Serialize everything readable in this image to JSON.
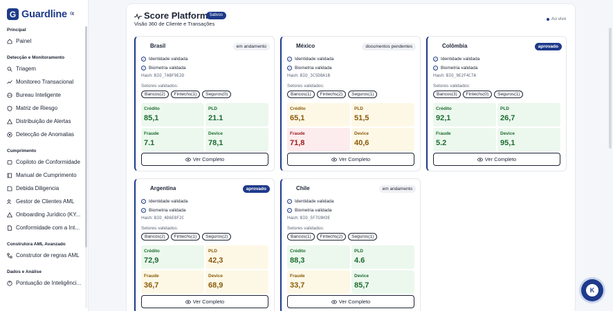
{
  "brand": {
    "name": "Guardline",
    "reg": "®",
    "logo_letter": "G",
    "color": "#1e3a8a"
  },
  "sidebar": {
    "collapse_glyph": "‹",
    "sections": [
      {
        "title": "Principal",
        "items": [
          {
            "label": "Painel",
            "icon": "home-icon"
          }
        ]
      },
      {
        "title": "Detecção e Monitoramento",
        "items": [
          {
            "label": "Triagem",
            "icon": "search-icon"
          },
          {
            "label": "Monitoreo Transacional",
            "icon": "trend-icon"
          },
          {
            "label": "Bureau Inteligente",
            "icon": "globe-icon"
          },
          {
            "label": "Matriz de Riesgo",
            "icon": "shield-icon"
          },
          {
            "label": "Distribuição de Alertas",
            "icon": "alert-icon"
          },
          {
            "label": "Detecção de Anomalias",
            "icon": "target-icon"
          }
        ]
      },
      {
        "title": "Cumprimento",
        "items": [
          {
            "label": "Copiloto de Conformidade",
            "icon": "copilot-icon"
          },
          {
            "label": "Manual de Cumprimento",
            "icon": "book-icon"
          },
          {
            "label": "Debida Diligencia",
            "icon": "diligence-icon"
          },
          {
            "label": "Gestor de Clientes AML",
            "icon": "users-icon"
          },
          {
            "label": "Onboarding Jurídico (KY...",
            "icon": "onboarding-icon"
          },
          {
            "label": "Conformidade com a Int...",
            "icon": "document-icon"
          }
        ]
      },
      {
        "title": "Construtora AML Avanzado",
        "items": [
          {
            "label": "Construtor de regras AML",
            "icon": "rules-icon"
          }
        ]
      },
      {
        "title": "Dados e Análise",
        "items": [
          {
            "label": "Pontuação de Inteligênci...",
            "icon": "score-icon"
          }
        ]
      }
    ]
  },
  "header": {
    "title": "Score Platform",
    "badge": "5ativos",
    "subtitle": "Visão 360 de Cliente e Transações",
    "live": "Ao vivo"
  },
  "labels": {
    "identity": "Identidade validada",
    "biometric": "Biometria validada",
    "hash_prefix": "Hash:",
    "sectors": "Setores validados:",
    "credit": "Crédito",
    "pld": "PLD",
    "fraud": "Fraude",
    "device": "Device",
    "view_button": "Ver Completo"
  },
  "cards": [
    {
      "country": "Brasil",
      "flag": "brazil-flag-icon",
      "status": "em andamento",
      "status_type": "default",
      "hash": "BIO_7ABF9E2D",
      "sectors": [
        "Bancos(2)",
        "Fintechs(1)",
        "Seguros(0)"
      ],
      "credit": "85,1",
      "pld": "21.1",
      "fraud": "7.1",
      "device": "78,1",
      "tones": [
        "green",
        "green",
        "green",
        "green"
      ]
    },
    {
      "country": "México",
      "flag": "mexico-flag-icon",
      "status": "documentos pendentes",
      "status_type": "default",
      "hash": "BIO_3C5D8A1B",
      "sectors": [
        "Bancos(1)",
        "Fintechs(2)",
        "Seguros(1)"
      ],
      "credit": "65,1",
      "pld": "51,5",
      "fraud": "71,8",
      "device": "40,6",
      "tones": [
        "yellow",
        "yellow",
        "red",
        "yellow"
      ]
    },
    {
      "country": "Colômbia",
      "flag": "colombia-flag-icon",
      "status": "aprovado",
      "status_type": "approved",
      "hash": "BIO_9E2F4C7A",
      "sectors": [
        "Bancos(3)",
        "Fintechs(0)",
        "Seguros(1)"
      ],
      "credit": "92,1",
      "pld": "26,7",
      "fraud": "5.2",
      "device": "95,1",
      "tones": [
        "green",
        "green",
        "green",
        "green"
      ]
    },
    {
      "country": "Argentina",
      "flag": "argentina-flag-icon",
      "status": "aprovado",
      "status_type": "approved",
      "hash": "BIO_4D6E8F2C",
      "sectors": [
        "Bancos(2)",
        "Fintechs(1)",
        "Seguros(2)"
      ],
      "credit": "72,9",
      "pld": "42,3",
      "fraud": "36,7",
      "device": "68,9",
      "tones": [
        "green",
        "yellow",
        "yellow",
        "yellow"
      ]
    },
    {
      "country": "Chile",
      "flag": "chile-flag-icon",
      "status": "em andamento",
      "status_type": "default",
      "hash": "BIO_5F7G9H3E",
      "sectors": [
        "Bancos(1)",
        "Fintechs(2)",
        "Seguros(1)"
      ],
      "credit": "88,3",
      "pld": "4.6",
      "fraud": "33,7",
      "device": "85,7",
      "tones": [
        "green",
        "green",
        "yellow",
        "green"
      ]
    }
  ],
  "fab": {
    "letter": "K"
  }
}
